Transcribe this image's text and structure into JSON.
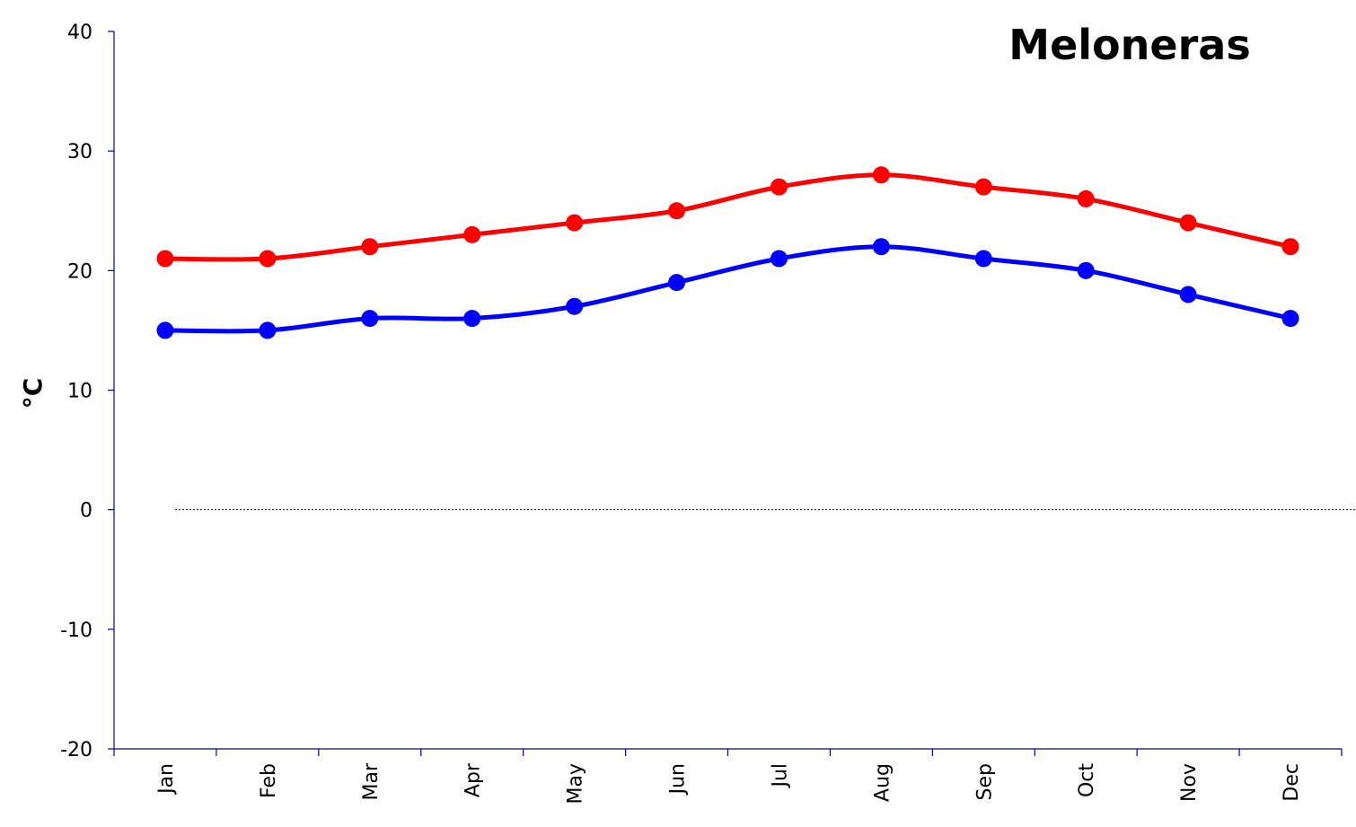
{
  "chart_data": {
    "type": "line",
    "title": "Meloneras",
    "ylabel": "°C",
    "xlabel": "",
    "ylim": [
      -20,
      40
    ],
    "yticks": [
      -20,
      -10,
      0,
      10,
      20,
      30,
      40
    ],
    "categories": [
      "Jan",
      "Feb",
      "Mar",
      "Apr",
      "May",
      "Jun",
      "Jul",
      "Aug",
      "Sep",
      "Oct",
      "Nov",
      "Dec"
    ],
    "series": [
      {
        "values": [
          21,
          21,
          22,
          23,
          24,
          25,
          27,
          28,
          27,
          26,
          24,
          22
        ],
        "color": "#ff0000"
      },
      {
        "values": [
          15,
          15,
          16,
          16,
          17,
          19,
          21,
          22,
          21,
          20,
          18,
          16
        ],
        "color": "#0000ff"
      }
    ],
    "zero_line": true,
    "grid": false,
    "smooth": true
  }
}
